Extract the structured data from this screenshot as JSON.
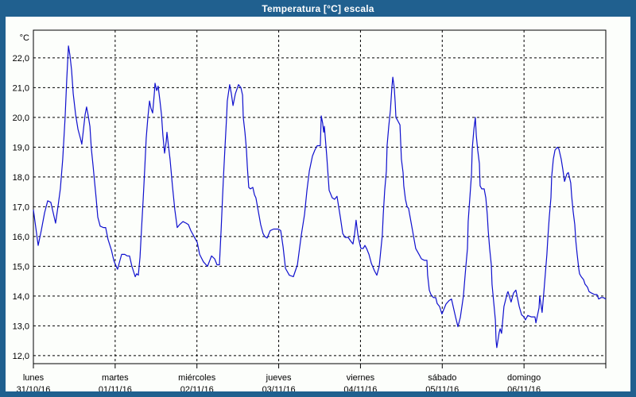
{
  "window": {
    "title": "Temperatura [°C] escala"
  },
  "colors": {
    "frame_blue": "#20608f",
    "plot_background": "#fcfefb",
    "grid_black": "#000000",
    "line_blue": "#0f10ce"
  },
  "chart_data": {
    "type": "line",
    "title": "Temperatura [°C] escala",
    "y_axis_unit": "°C",
    "grid": "dashed",
    "legend": "none",
    "ylim_axis": [
      11.73,
      22.93
    ],
    "y_ticks": [
      {
        "value": 22,
        "label": "22,0"
      },
      {
        "value": 21,
        "label": "21,0"
      },
      {
        "value": 20,
        "label": "20,0"
      },
      {
        "value": 19,
        "label": "19,0"
      },
      {
        "value": 18,
        "label": "18,0"
      },
      {
        "value": 17,
        "label": "17,0"
      },
      {
        "value": 16,
        "label": "16,0"
      },
      {
        "value": 15,
        "label": "15,0"
      },
      {
        "value": 14,
        "label": "14,0"
      },
      {
        "value": 13,
        "label": "13,0"
      },
      {
        "value": 12,
        "label": "12,0"
      }
    ],
    "x_days": [
      {
        "name": "lunes",
        "date": "31/10/16"
      },
      {
        "name": "martes",
        "date": "01/11/16"
      },
      {
        "name": "miércoles",
        "date": "02/11/16"
      },
      {
        "name": "jueves",
        "date": "03/11/16"
      },
      {
        "name": "viernes",
        "date": "04/11/16"
      },
      {
        "name": "sábado",
        "date": "05/11/16"
      },
      {
        "name": "domingo",
        "date": "06/11/16"
      }
    ],
    "x_total_hours": 168,
    "series": [
      {
        "name": "Temperatura [°C]",
        "color": "#0f10ce",
        "points_hours_temp": [
          [
            0,
            16.9
          ],
          [
            0.7,
            16.3
          ],
          [
            1.4,
            15.7
          ],
          [
            2.3,
            16.2
          ],
          [
            3.3,
            16.8
          ],
          [
            4.2,
            17.2
          ],
          [
            5.1,
            17.15
          ],
          [
            5.8,
            16.8
          ],
          [
            6.5,
            16.45
          ],
          [
            7.2,
            17.0
          ],
          [
            7.9,
            17.6
          ],
          [
            8.6,
            18.6
          ],
          [
            9.3,
            20.0
          ],
          [
            9.8,
            21.3
          ],
          [
            10.3,
            22.4
          ],
          [
            10.7,
            22.1
          ],
          [
            11.2,
            21.6
          ],
          [
            11.7,
            20.8
          ],
          [
            12.4,
            20.1
          ],
          [
            13.1,
            19.6
          ],
          [
            13.8,
            19.3
          ],
          [
            14.2,
            19.1
          ],
          [
            14.7,
            19.6
          ],
          [
            15.2,
            20.1
          ],
          [
            15.6,
            20.35
          ],
          [
            16.1,
            20.05
          ],
          [
            16.6,
            19.7
          ],
          [
            17,
            18.95
          ],
          [
            17.5,
            18.4
          ],
          [
            18,
            17.8
          ],
          [
            18.4,
            17.3
          ],
          [
            18.9,
            16.65
          ],
          [
            19.6,
            16.35
          ],
          [
            20.5,
            16.3
          ],
          [
            21.2,
            16.3
          ],
          [
            21.9,
            15.9
          ],
          [
            22.9,
            15.55
          ],
          [
            23.6,
            15.2
          ],
          [
            24.3,
            15.0
          ],
          [
            24.7,
            14.9
          ],
          [
            25.4,
            15.2
          ],
          [
            25.9,
            15.4
          ],
          [
            26.8,
            15.4
          ],
          [
            27.5,
            15.35
          ],
          [
            28.2,
            15.35
          ],
          [
            28.9,
            15.0
          ],
          [
            29.9,
            14.65
          ],
          [
            30.3,
            14.75
          ],
          [
            30.8,
            14.7
          ],
          [
            31.3,
            15.3
          ],
          [
            31.7,
            16.2
          ],
          [
            32.2,
            17.2
          ],
          [
            32.7,
            18.3
          ],
          [
            33.1,
            19.3
          ],
          [
            33.6,
            20.0
          ],
          [
            34.1,
            20.55
          ],
          [
            34.5,
            20.3
          ],
          [
            35,
            20.15
          ],
          [
            35.5,
            20.8
          ],
          [
            35.7,
            21.15
          ],
          [
            36.2,
            20.9
          ],
          [
            36.6,
            21.05
          ],
          [
            37.1,
            20.6
          ],
          [
            37.6,
            20.1
          ],
          [
            38,
            19.4
          ],
          [
            38.5,
            18.8
          ],
          [
            39,
            19.2
          ],
          [
            39.2,
            19.5
          ],
          [
            39.7,
            19.0
          ],
          [
            40.1,
            18.6
          ],
          [
            40.8,
            17.7
          ],
          [
            41.5,
            16.9
          ],
          [
            42.2,
            16.3
          ],
          [
            42.9,
            16.4
          ],
          [
            43.9,
            16.5
          ],
          [
            44.8,
            16.45
          ],
          [
            45.5,
            16.4
          ],
          [
            46.2,
            16.2
          ],
          [
            47.4,
            15.95
          ],
          [
            48.1,
            15.8
          ],
          [
            48.8,
            15.4
          ],
          [
            49.9,
            15.15
          ],
          [
            51.1,
            15.0
          ],
          [
            52.3,
            15.35
          ],
          [
            53.2,
            15.25
          ],
          [
            53.9,
            15.05
          ],
          [
            54.6,
            15.05
          ],
          [
            55.1,
            16.2
          ],
          [
            55.5,
            17.3
          ],
          [
            55.8,
            18.0
          ],
          [
            56.2,
            18.95
          ],
          [
            56.7,
            20.0
          ],
          [
            56.9,
            20.55
          ],
          [
            57.6,
            21.1
          ],
          [
            58.1,
            20.8
          ],
          [
            58.6,
            20.4
          ],
          [
            59.3,
            20.8
          ],
          [
            60.2,
            21.1
          ],
          [
            60.9,
            21.0
          ],
          [
            61.4,
            20.75
          ],
          [
            61.6,
            20.0
          ],
          [
            62.1,
            19.5
          ],
          [
            62.5,
            18.95
          ],
          [
            62.8,
            18.35
          ],
          [
            63.2,
            17.65
          ],
          [
            63.7,
            17.6
          ],
          [
            64.4,
            17.65
          ],
          [
            64.9,
            17.4
          ],
          [
            65.3,
            17.3
          ],
          [
            66,
            16.85
          ],
          [
            66.7,
            16.4
          ],
          [
            67.4,
            16.1
          ],
          [
            67.9,
            16.0
          ],
          [
            68.6,
            15.95
          ],
          [
            69.5,
            16.2
          ],
          [
            70.5,
            16.25
          ],
          [
            71.9,
            16.25
          ],
          [
            72.6,
            16.2
          ],
          [
            73.3,
            15.65
          ],
          [
            74,
            14.93
          ],
          [
            75.1,
            14.7
          ],
          [
            76.3,
            14.65
          ],
          [
            77.5,
            15.05
          ],
          [
            78.6,
            16.03
          ],
          [
            79.6,
            16.75
          ],
          [
            80.3,
            17.55
          ],
          [
            81,
            18.2
          ],
          [
            81.9,
            18.7
          ],
          [
            82.6,
            18.9
          ],
          [
            83.3,
            19.05
          ],
          [
            84.2,
            19.05
          ],
          [
            84.5,
            20.05
          ],
          [
            84.9,
            19.8
          ],
          [
            85.2,
            19.5
          ],
          [
            85.4,
            19.7
          ],
          [
            86.1,
            18.7
          ],
          [
            86.8,
            17.55
          ],
          [
            87.7,
            17.3
          ],
          [
            88.4,
            17.25
          ],
          [
            89.1,
            17.35
          ],
          [
            90.1,
            16.65
          ],
          [
            90.8,
            16.1
          ],
          [
            91.5,
            15.97
          ],
          [
            92.4,
            15.97
          ],
          [
            93.1,
            15.85
          ],
          [
            93.8,
            15.75
          ],
          [
            94.3,
            16.1
          ],
          [
            94.7,
            16.55
          ],
          [
            95.2,
            16.1
          ],
          [
            95.4,
            15.95
          ],
          [
            96.1,
            15.6
          ],
          [
            96.8,
            15.6
          ],
          [
            97.3,
            15.7
          ],
          [
            97.8,
            15.6
          ],
          [
            98.5,
            15.4
          ],
          [
            99.2,
            15.1
          ],
          [
            100.1,
            14.85
          ],
          [
            100.8,
            14.7
          ],
          [
            101.5,
            15.0
          ],
          [
            102.4,
            16.05
          ],
          [
            102.7,
            16.75
          ],
          [
            103.1,
            17.55
          ],
          [
            103.6,
            18.2
          ],
          [
            103.8,
            19.05
          ],
          [
            104.3,
            19.7
          ],
          [
            104.8,
            20.25
          ],
          [
            105.2,
            21.0
          ],
          [
            105.5,
            21.35
          ],
          [
            105.9,
            21.0
          ],
          [
            106.2,
            20.5
          ],
          [
            106.4,
            20.0
          ],
          [
            106.9,
            19.9
          ],
          [
            107.6,
            19.75
          ],
          [
            108,
            18.6
          ],
          [
            108.5,
            18.15
          ],
          [
            108.7,
            17.7
          ],
          [
            109.2,
            17.25
          ],
          [
            109.7,
            17.0
          ],
          [
            110.1,
            16.95
          ],
          [
            110.8,
            16.5
          ],
          [
            111.5,
            16.05
          ],
          [
            112.2,
            15.6
          ],
          [
            113.2,
            15.4
          ],
          [
            113.9,
            15.25
          ],
          [
            114.8,
            15.2
          ],
          [
            115.5,
            15.2
          ],
          [
            115.7,
            14.7
          ],
          [
            116.2,
            14.2
          ],
          [
            116.7,
            14.05
          ],
          [
            117.4,
            13.95
          ],
          [
            118.1,
            13.95
          ],
          [
            118.5,
            13.75
          ],
          [
            119.2,
            13.65
          ],
          [
            119.9,
            13.4
          ],
          [
            121.1,
            13.73
          ],
          [
            122,
            13.85
          ],
          [
            122.7,
            13.9
          ],
          [
            123.9,
            13.3
          ],
          [
            124.6,
            12.97
          ],
          [
            125.3,
            13.28
          ],
          [
            126.2,
            14.0
          ],
          [
            126.9,
            14.97
          ],
          [
            127.4,
            15.6
          ],
          [
            127.6,
            16.5
          ],
          [
            128.1,
            17.3
          ],
          [
            128.6,
            18.1
          ],
          [
            128.8,
            18.95
          ],
          [
            129.3,
            19.6
          ],
          [
            129.7,
            20.0
          ],
          [
            130,
            19.4
          ],
          [
            130.4,
            18.9
          ],
          [
            130.9,
            18.45
          ],
          [
            131.1,
            17.7
          ],
          [
            131.6,
            17.6
          ],
          [
            132.3,
            17.6
          ],
          [
            132.8,
            17.3
          ],
          [
            133.2,
            16.75
          ],
          [
            133.5,
            16.2
          ],
          [
            133.9,
            15.6
          ],
          [
            134.4,
            15.05
          ],
          [
            134.6,
            14.4
          ],
          [
            135.1,
            13.8
          ],
          [
            135.6,
            13.2
          ],
          [
            135.8,
            12.5
          ],
          [
            136,
            12.27
          ],
          [
            136.7,
            12.78
          ],
          [
            137,
            12.9
          ],
          [
            137.4,
            12.75
          ],
          [
            138.1,
            13.65
          ],
          [
            139.1,
            14.1
          ],
          [
            139.3,
            14.15
          ],
          [
            140.2,
            13.8
          ],
          [
            140.9,
            14.1
          ],
          [
            141.6,
            14.2
          ],
          [
            142.6,
            13.65
          ],
          [
            143.3,
            13.37
          ],
          [
            144,
            13.3
          ],
          [
            144.4,
            13.2
          ],
          [
            145.1,
            13.35
          ],
          [
            146.1,
            13.3
          ],
          [
            147.2,
            13.3
          ],
          [
            147.5,
            13.1
          ],
          [
            148.4,
            13.6
          ],
          [
            148.6,
            14.0
          ],
          [
            149.3,
            13.45
          ],
          [
            149.8,
            14.1
          ],
          [
            150.3,
            14.8
          ],
          [
            150.7,
            15.4
          ],
          [
            151,
            15.95
          ],
          [
            151.4,
            16.65
          ],
          [
            151.9,
            17.3
          ],
          [
            152.1,
            18.0
          ],
          [
            152.6,
            18.6
          ],
          [
            153.1,
            18.9
          ],
          [
            153.8,
            19.0
          ],
          [
            154.2,
            18.95
          ],
          [
            154.9,
            18.6
          ],
          [
            155.4,
            18.25
          ],
          [
            155.9,
            17.85
          ],
          [
            156.6,
            18.1
          ],
          [
            157,
            18.15
          ],
          [
            157.7,
            17.8
          ],
          [
            158,
            17.35
          ],
          [
            158.4,
            16.85
          ],
          [
            158.9,
            16.4
          ],
          [
            159.2,
            15.85
          ],
          [
            159.6,
            15.4
          ],
          [
            160.1,
            14.9
          ],
          [
            160.3,
            14.75
          ],
          [
            160.8,
            14.65
          ],
          [
            161.5,
            14.55
          ],
          [
            161.9,
            14.4
          ],
          [
            162.6,
            14.3
          ],
          [
            163.1,
            14.15
          ],
          [
            163.8,
            14.1
          ],
          [
            164.7,
            14.05
          ],
          [
            165.4,
            14.05
          ],
          [
            165.9,
            13.9
          ],
          [
            166.6,
            13.95
          ],
          [
            167.3,
            13.95
          ],
          [
            168,
            13.9
          ]
        ]
      }
    ]
  }
}
